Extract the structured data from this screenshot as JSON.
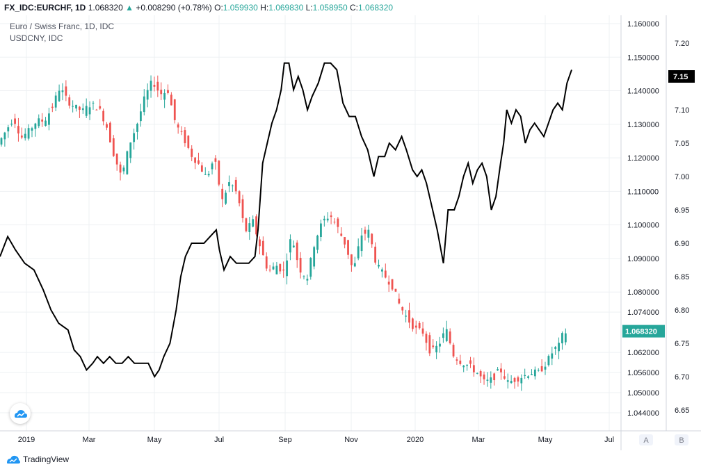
{
  "header": {
    "symbol": "FX_IDC:EURCHF, 1D",
    "last": "1.068320",
    "change": "+0.008290 (+0.78%)",
    "o_label": "O:",
    "o": "1.059930",
    "h_label": "H:",
    "h": "1.069830",
    "l_label": "L:",
    "l": "1.058950",
    "c_label": "C:",
    "c": "1.068320"
  },
  "legend": {
    "line1": "Euro / Swiss Franc, 1D, IDC",
    "line2": "USDCNY, IDC"
  },
  "footer": {
    "brand": "TradingView"
  },
  "scale_buttons": {
    "a": "A",
    "b": "B"
  },
  "chart_data": {
    "type": "line",
    "x_ticks": [
      "2019",
      "Mar",
      "May",
      "Jul",
      "Sep",
      "Nov",
      "2020",
      "Mar",
      "May",
      "Jul"
    ],
    "right_axis_eurchf": {
      "ticks": [
        "1.160000",
        "1.150000",
        "1.140000",
        "1.130000",
        "1.120000",
        "1.110000",
        "1.100000",
        "1.090000",
        "1.080000",
        "1.074000",
        "1.062000",
        "1.056000",
        "1.050000",
        "1.044000"
      ],
      "last_value_label": "1.068320",
      "last_value_color": "#26a69a"
    },
    "left_axis_usdcny": {
      "ticks": [
        "7.20",
        "7.15",
        "7.10",
        "7.05",
        "7.00",
        "6.95",
        "6.90",
        "6.85",
        "6.80",
        "6.75",
        "6.70",
        "6.65"
      ],
      "last_value_label": "7.15",
      "last_value_color": "#000000"
    },
    "colors": {
      "up": "#26a69a",
      "down": "#ef5350",
      "usdcny": "#000000",
      "grid": "#eef0f3"
    },
    "usdcny": [
      [
        0,
        6.88
      ],
      [
        5,
        6.91
      ],
      [
        10,
        6.89
      ],
      [
        16,
        6.87
      ],
      [
        22,
        6.86
      ],
      [
        28,
        6.83
      ],
      [
        33,
        6.8
      ],
      [
        38,
        6.78
      ],
      [
        44,
        6.77
      ],
      [
        48,
        6.74
      ],
      [
        52,
        6.73
      ],
      [
        56,
        6.71
      ],
      [
        60,
        6.72
      ],
      [
        63,
        6.73
      ],
      [
        67,
        6.72
      ],
      [
        71,
        6.73
      ],
      [
        75,
        6.72
      ],
      [
        79,
        6.72
      ],
      [
        83,
        6.73
      ],
      [
        87,
        6.72
      ],
      [
        91,
        6.72
      ],
      [
        96,
        6.72
      ],
      [
        100,
        6.7
      ],
      [
        103,
        6.71
      ],
      [
        106,
        6.73
      ],
      [
        110,
        6.75
      ],
      [
        114,
        6.8
      ],
      [
        117,
        6.85
      ],
      [
        120,
        6.88
      ],
      [
        124,
        6.9
      ],
      [
        128,
        6.9
      ],
      [
        132,
        6.9
      ],
      [
        136,
        6.91
      ],
      [
        140,
        6.92
      ],
      [
        142,
        6.89
      ],
      [
        145,
        6.86
      ],
      [
        149,
        6.88
      ],
      [
        153,
        6.87
      ],
      [
        157,
        6.87
      ],
      [
        161,
        6.87
      ],
      [
        165,
        6.88
      ],
      [
        167,
        6.92
      ],
      [
        170,
        7.02
      ],
      [
        173,
        7.05
      ],
      [
        176,
        7.08
      ],
      [
        179,
        7.1
      ],
      [
        182,
        7.13
      ],
      [
        184,
        7.17
      ],
      [
        187,
        7.17
      ],
      [
        190,
        7.13
      ],
      [
        193,
        7.15
      ],
      [
        196,
        7.13
      ],
      [
        199,
        7.1
      ],
      [
        202,
        7.12
      ],
      [
        206,
        7.14
      ],
      [
        210,
        7.17
      ],
      [
        214,
        7.17
      ],
      [
        218,
        7.16
      ],
      [
        222,
        7.11
      ],
      [
        226,
        7.09
      ],
      [
        230,
        7.09
      ],
      [
        234,
        7.06
      ],
      [
        238,
        7.04
      ],
      [
        242,
        7.0
      ],
      [
        245,
        7.03
      ],
      [
        249,
        7.03
      ],
      [
        252,
        7.05
      ],
      [
        256,
        7.04
      ],
      [
        260,
        7.06
      ],
      [
        263,
        7.04
      ],
      [
        267,
        7.01
      ],
      [
        270,
        7.0
      ],
      [
        273,
        7.01
      ],
      [
        276,
        6.99
      ],
      [
        280,
        6.95
      ],
      [
        283,
        6.92
      ],
      [
        287,
        6.87
      ],
      [
        290,
        6.95
      ],
      [
        294,
        6.95
      ],
      [
        297,
        6.97
      ],
      [
        300,
        7.0
      ],
      [
        303,
        7.02
      ],
      [
        306,
        6.99
      ],
      [
        309,
        7.01
      ],
      [
        312,
        7.02
      ],
      [
        315,
        7.0
      ],
      [
        318,
        6.95
      ],
      [
        321,
        6.97
      ],
      [
        324,
        7.02
      ],
      [
        326,
        7.05
      ],
      [
        328,
        7.1
      ],
      [
        331,
        7.08
      ],
      [
        334,
        7.1
      ],
      [
        337,
        7.09
      ],
      [
        340,
        7.05
      ],
      [
        343,
        7.07
      ],
      [
        346,
        7.08
      ],
      [
        349,
        7.07
      ],
      [
        352,
        7.06
      ],
      [
        355,
        7.08
      ],
      [
        358,
        7.1
      ],
      [
        361,
        7.11
      ],
      [
        364,
        7.1
      ],
      [
        367,
        7.14
      ],
      [
        370,
        7.16
      ]
    ],
    "eurchf": [
      [
        0,
        1.124
      ],
      [
        5,
        1.128
      ],
      [
        10,
        1.132
      ],
      [
        15,
        1.126
      ],
      [
        20,
        1.128
      ],
      [
        25,
        1.131
      ],
      [
        30,
        1.131
      ],
      [
        35,
        1.135
      ],
      [
        40,
        1.141
      ],
      [
        45,
        1.137
      ],
      [
        50,
        1.135
      ],
      [
        55,
        1.134
      ],
      [
        60,
        1.136
      ],
      [
        65,
        1.135
      ],
      [
        70,
        1.13
      ],
      [
        75,
        1.121
      ],
      [
        80,
        1.114
      ],
      [
        85,
        1.124
      ],
      [
        90,
        1.13
      ],
      [
        95,
        1.138
      ],
      [
        100,
        1.143
      ],
      [
        105,
        1.139
      ],
      [
        110,
        1.14
      ],
      [
        115,
        1.13
      ],
      [
        120,
        1.126
      ],
      [
        125,
        1.121
      ],
      [
        130,
        1.118
      ],
      [
        135,
        1.114
      ],
      [
        140,
        1.12
      ],
      [
        145,
        1.107
      ],
      [
        150,
        1.113
      ],
      [
        155,
        1.109
      ],
      [
        160,
        1.098
      ],
      [
        165,
        1.101
      ],
      [
        170,
        1.093
      ],
      [
        175,
        1.086
      ],
      [
        180,
        1.088
      ],
      [
        185,
        1.086
      ],
      [
        190,
        1.097
      ],
      [
        195,
        1.087
      ],
      [
        200,
        1.084
      ],
      [
        205,
        1.095
      ],
      [
        210,
        1.101
      ],
      [
        215,
        1.103
      ],
      [
        220,
        1.099
      ],
      [
        225,
        1.094
      ],
      [
        230,
        1.086
      ],
      [
        235,
        1.097
      ],
      [
        240,
        1.098
      ],
      [
        245,
        1.088
      ],
      [
        250,
        1.085
      ],
      [
        255,
        1.082
      ],
      [
        260,
        1.076
      ],
      [
        265,
        1.072
      ],
      [
        270,
        1.069
      ],
      [
        275,
        1.068
      ],
      [
        280,
        1.062
      ],
      [
        285,
        1.064
      ],
      [
        290,
        1.069
      ],
      [
        295,
        1.061
      ],
      [
        300,
        1.059
      ],
      [
        305,
        1.058
      ],
      [
        310,
        1.056
      ],
      [
        315,
        1.053
      ],
      [
        320,
        1.054
      ],
      [
        325,
        1.057
      ],
      [
        330,
        1.053
      ],
      [
        335,
        1.054
      ],
      [
        340,
        1.055
      ],
      [
        345,
        1.056
      ],
      [
        350,
        1.056
      ],
      [
        355,
        1.059
      ],
      [
        360,
        1.063
      ],
      [
        363,
        1.064
      ],
      [
        366,
        1.068
      ]
    ]
  }
}
